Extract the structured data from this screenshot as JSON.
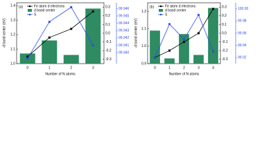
{
  "chart_data": [
    {
      "type": "bar-line",
      "panel_label": "(a)",
      "xlabel": "Number of N atoms",
      "ylabel": "-d band center (eV)",
      "categories": [
        "0",
        "1",
        "2",
        "3"
      ],
      "series": [
        {
          "name": "Fe atom d electrons",
          "color": "#000000",
          "type": "line",
          "axis": "y2",
          "values": [
            -0.27,
            -0.05,
            0.05,
            0.25
          ]
        },
        {
          "name": "d band center",
          "color": "#2e8b62",
          "type": "bar",
          "axis": "y",
          "values": [
            1.07,
            1.16,
            1.06,
            1.38
          ]
        },
        {
          "name": "S",
          "color": "#2a4cf0",
          "type": "line",
          "axis": "y3",
          "values": [
            99.9392,
            99.9442,
            99.9462,
            99.941
          ]
        }
      ],
      "ylim": [
        1.0,
        1.42
      ],
      "yticks": [
        {
          "value": 1.0,
          "label": "1.0"
        },
        1.1,
        1.2,
        1.3,
        1.4
      ],
      "y2lim": [
        -0.35,
        0.35
      ],
      "y2ticks": [
        -0.3,
        -0.2,
        -0.1,
        {
          "value": 0,
          "label": "0.0"
        },
        0.1,
        0.2,
        0.3
      ],
      "y3lim": [
        99.9385,
        99.9468
      ],
      "y3ticks": [
        {
          "value": 99.94,
          "label": "99.940"
        },
        99.941,
        99.942,
        99.943,
        99.944,
        99.945,
        99.946
      ]
    },
    {
      "type": "bar-line",
      "panel_label": "(b)",
      "xlabel": "Number of N atoms",
      "ylabel": "-d band center (eV)",
      "categories": [
        "0",
        "1",
        "2",
        "3",
        "4"
      ],
      "series": [
        {
          "name": "Fe atom d electrons",
          "color": "#000000",
          "type": "line",
          "axis": "y2",
          "values": [
            -0.28,
            -0.2,
            -0.1,
            0.0,
            0.28
          ]
        },
        {
          "name": "d band center",
          "color": "#2e8b62",
          "type": "bar",
          "axis": "y",
          "values": [
            1.09,
            0.93,
            1.07,
            0.95,
            1.22
          ]
        },
        {
          "name": "S",
          "color": "#2a4cf0",
          "type": "line",
          "axis": "y3",
          "values": [
            99.92,
            99.975,
            99.95,
            99.99,
            99.93
          ]
        }
      ],
      "ylim": [
        0.9,
        1.25
      ],
      "yticks": [
        0.9,
        {
          "value": 1.0,
          "label": "1.0"
        },
        1.1,
        1.2
      ],
      "y2lim": [
        -0.35,
        0.35
      ],
      "y2ticks": [
        -0.3,
        -0.2,
        -0.1,
        {
          "value": 0,
          "label": "0.0"
        },
        0.1,
        0.2,
        0.3
      ],
      "y3lim": [
        99.91,
        100.01
      ],
      "y3ticks": [
        99.92,
        99.94,
        99.96,
        99.98,
        {
          "value": 100,
          "label": "100.00"
        }
      ]
    }
  ]
}
